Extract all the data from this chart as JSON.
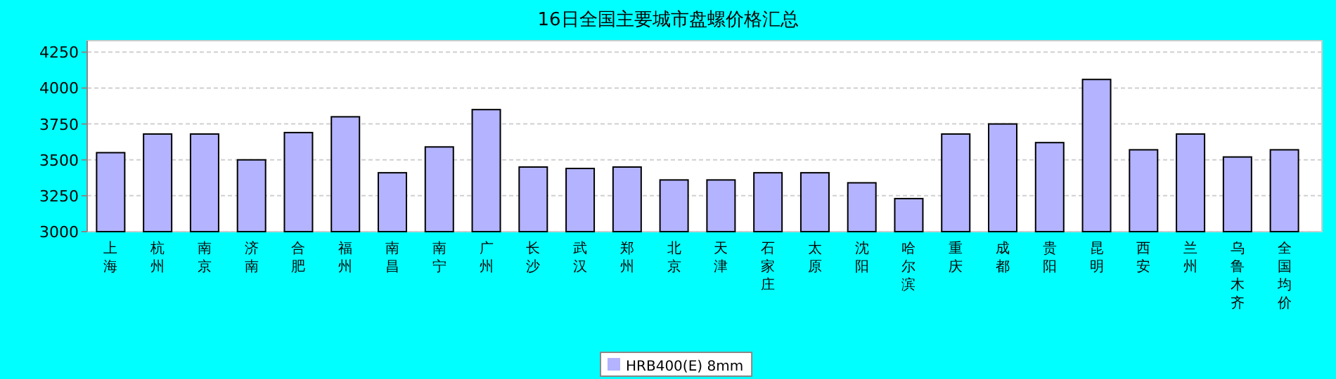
{
  "chart_data": {
    "type": "bar",
    "title": "16日全国主要城市盘螺价格汇总",
    "categories": [
      "上海",
      "杭州",
      "南京",
      "济南",
      "合肥",
      "福州",
      "南昌",
      "南宁",
      "广州",
      "长沙",
      "武汉",
      "郑州",
      "北京",
      "天津",
      "石家庄",
      "太原",
      "沈阳",
      "哈尔滨",
      "重庆",
      "成都",
      "贵阳",
      "昆明",
      "西安",
      "兰州",
      "乌鲁木齐",
      "全国均价"
    ],
    "series": [
      {
        "name": "HRB400(E) 8mm",
        "color": "#b3b3ff",
        "values": [
          3550,
          3680,
          3680,
          3500,
          3690,
          3800,
          3410,
          3590,
          3850,
          3450,
          3440,
          3450,
          3360,
          3360,
          3410,
          3410,
          3340,
          3230,
          3680,
          3750,
          3620,
          4060,
          3570,
          3680,
          3520,
          3570
        ]
      }
    ],
    "ylim": [
      3000,
      4330
    ],
    "yticks": [
      3000,
      3250,
      3500,
      3750,
      4000,
      4250
    ],
    "grid": "y",
    "legend": "bottom"
  }
}
